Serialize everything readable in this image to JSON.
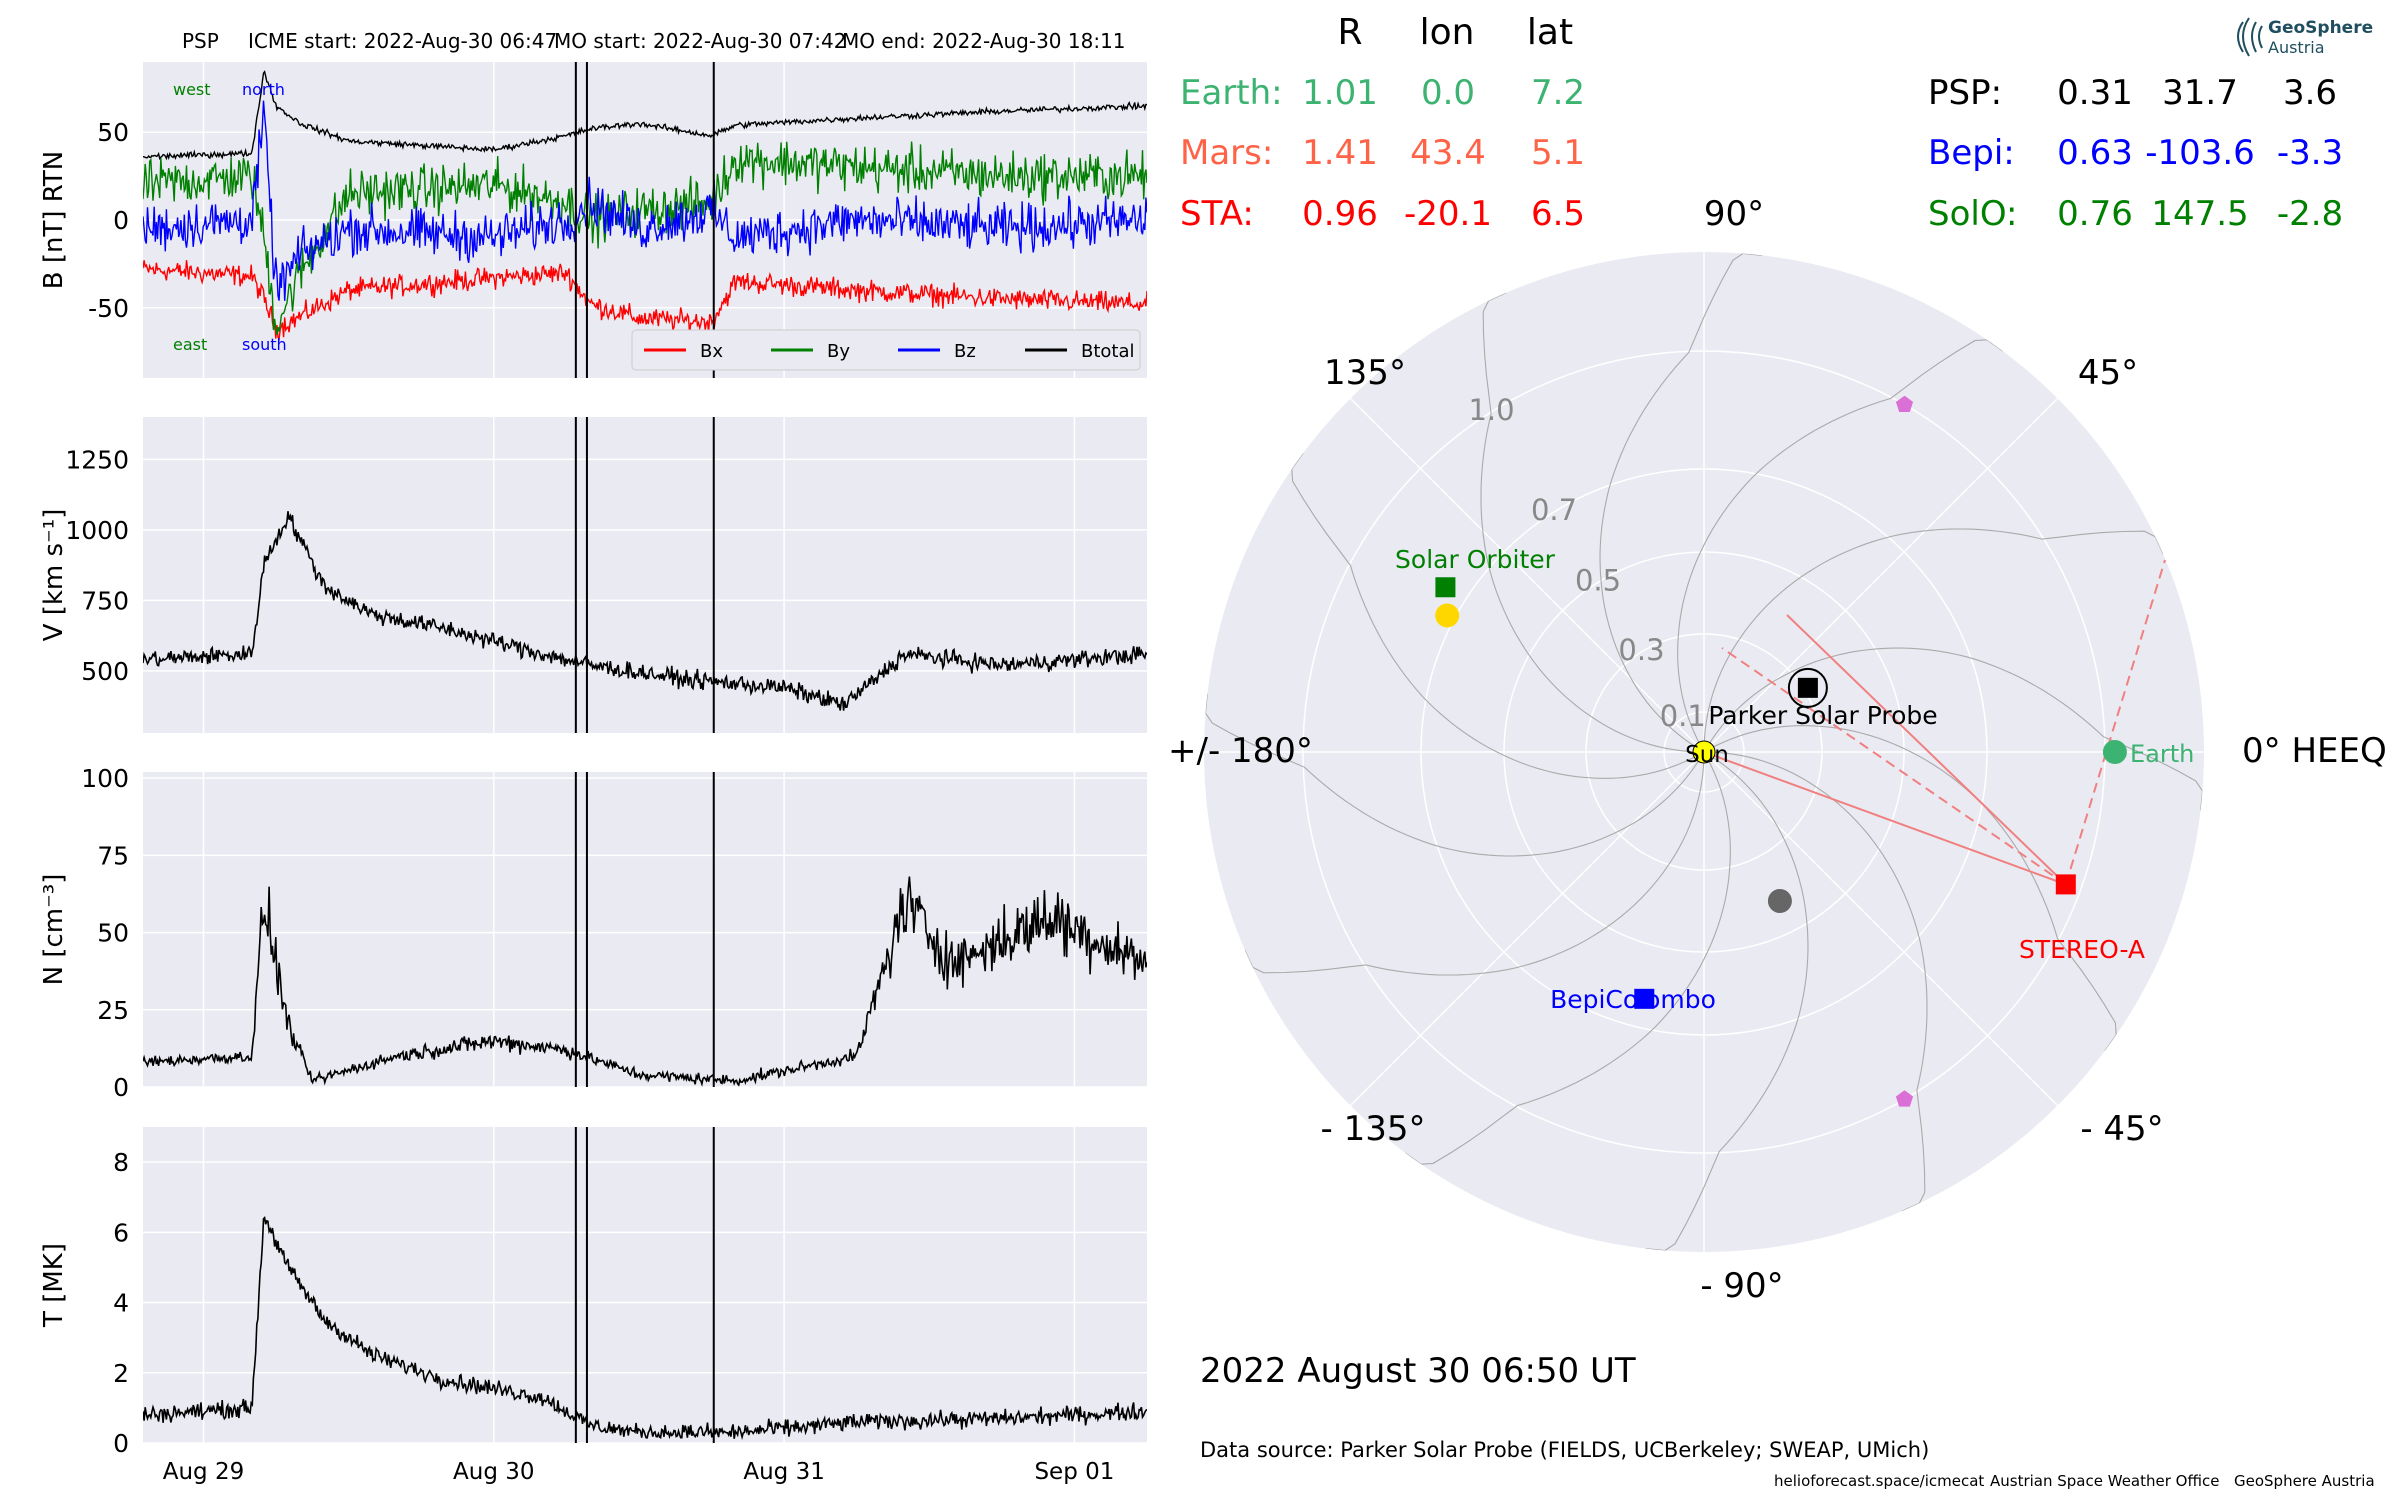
{
  "figure": {
    "header": {
      "spacecraft": "PSP",
      "icme_start": "ICME start: 2022-Aug-30 06:47",
      "mo_start": "MO start: 2022-Aug-30 07:42",
      "mo_end": "MO end: 2022-Aug-30 18:11"
    },
    "date_label": "2022 August 30  06:50 UT",
    "data_source": "Data source: Parker Solar Probe (FIELDS, UCBerkeley; SWEAP, UMich)",
    "footer_credits": [
      "helioforecast.space/icmecat",
      "Austrian Space Weather Office",
      "GeoSphere Austria"
    ],
    "logo": {
      "line1": "GeoSphere",
      "line2": "Austria"
    }
  },
  "colors": {
    "panel_bg": "#eaeaf2",
    "grid": "#ffffff",
    "bx": "#ff0000",
    "by": "#008000",
    "bz": "#0000ff",
    "btotal": "#000000",
    "earth": "#3cb371",
    "mars": "#ff6347",
    "sta": "#ff0000",
    "psp": "#000000",
    "bepi": "#0000ff",
    "solo": "#008000",
    "sun": "#ffff00",
    "planet_grey": "#666666",
    "lagrange": "#da70d6"
  },
  "chart_data": [
    {
      "type": "line",
      "panel": "magnetic_field",
      "ylabel": "B [nT] RTN",
      "ylim": [
        -90,
        90
      ],
      "yticks": [
        -50,
        0,
        50
      ],
      "xlim": [
        "2022-08-28 19:00",
        "2022-09-01 06:00"
      ],
      "xticks": [
        "Aug 29",
        "Aug 30",
        "Aug 31",
        "Sep 01"
      ],
      "grid": true,
      "legend_position": "bottom-right",
      "annotations": {
        "top_left": "west",
        "top_right": "north",
        "bottom_left": "east",
        "bottom_right": "south"
      },
      "vertical_lines": [
        "2022-08-30 06:47",
        "2022-08-30 07:42",
        "2022-08-30 18:11"
      ],
      "series": [
        {
          "name": "Bx",
          "x": [
            "2022-08-28 19:00",
            "2022-08-29 04:00",
            "2022-08-29 05:00",
            "2022-08-29 06:00",
            "2022-08-29 08:00",
            "2022-08-29 12:00",
            "2022-08-30 00:00",
            "2022-08-30 06:00",
            "2022-08-30 08:00",
            "2022-08-30 12:00",
            "2022-08-30 18:00",
            "2022-08-30 20:00",
            "2022-08-31 06:00",
            "2022-08-31 18:00",
            "2022-09-01 06:00"
          ],
          "values": [
            -28,
            -32,
            -45,
            -62,
            -55,
            -40,
            -33,
            -30,
            -48,
            -56,
            -58,
            -35,
            -40,
            -45,
            -48
          ]
        },
        {
          "name": "By",
          "x": [
            "2022-08-28 19:00",
            "2022-08-29 04:00",
            "2022-08-29 05:00",
            "2022-08-29 06:00",
            "2022-08-29 08:00",
            "2022-08-29 12:00",
            "2022-08-30 00:00",
            "2022-08-30 06:00",
            "2022-08-30 08:00",
            "2022-08-30 12:00",
            "2022-08-30 18:00",
            "2022-08-30 20:00",
            "2022-08-31 06:00",
            "2022-08-31 18:00",
            "2022-09-01 06:00"
          ],
          "values": [
            20,
            25,
            -10,
            -60,
            -30,
            15,
            20,
            10,
            0,
            5,
            10,
            35,
            30,
            25,
            25
          ]
        },
        {
          "name": "Bz",
          "x": [
            "2022-08-28 19:00",
            "2022-08-29 04:00",
            "2022-08-29 05:00",
            "2022-08-29 06:00",
            "2022-08-29 08:00",
            "2022-08-29 12:00",
            "2022-08-30 00:00",
            "2022-08-30 06:00",
            "2022-08-30 08:00",
            "2022-08-30 12:00",
            "2022-08-30 18:00",
            "2022-08-30 20:00",
            "2022-08-31 06:00",
            "2022-08-31 18:00",
            "2022-09-01 06:00"
          ],
          "values": [
            -5,
            0,
            60,
            -40,
            -20,
            -5,
            -10,
            0,
            10,
            -5,
            5,
            -10,
            0,
            -5,
            0
          ]
        },
        {
          "name": "Btotal",
          "x": [
            "2022-08-28 19:00",
            "2022-08-29 04:00",
            "2022-08-29 05:00",
            "2022-08-29 06:00",
            "2022-08-29 08:00",
            "2022-08-29 12:00",
            "2022-08-30 00:00",
            "2022-08-30 06:00",
            "2022-08-30 08:00",
            "2022-08-30 12:00",
            "2022-08-30 18:00",
            "2022-08-30 20:00",
            "2022-08-31 06:00",
            "2022-08-31 18:00",
            "2022-09-01 06:00"
          ],
          "values": [
            36,
            38,
            85,
            65,
            55,
            45,
            40,
            48,
            52,
            55,
            48,
            54,
            58,
            62,
            65
          ]
        }
      ]
    },
    {
      "type": "line",
      "panel": "speed",
      "ylabel": "V [km s⁻¹]",
      "ylim": [
        280,
        1400
      ],
      "yticks": [
        500,
        750,
        1000,
        1250
      ],
      "xlim": [
        "2022-08-28 19:00",
        "2022-09-01 06:00"
      ],
      "grid": true,
      "vertical_lines": [
        "2022-08-30 06:47",
        "2022-08-30 07:42",
        "2022-08-30 18:11"
      ],
      "series": [
        {
          "name": "V",
          "x": [
            "2022-08-28 19:00",
            "2022-08-29 04:00",
            "2022-08-29 05:00",
            "2022-08-29 07:00",
            "2022-08-29 10:00",
            "2022-08-29 14:00",
            "2022-08-29 20:00",
            "2022-08-30 04:00",
            "2022-08-30 08:00",
            "2022-08-30 16:00",
            "2022-08-31 00:00",
            "2022-08-31 05:00",
            "2022-08-31 10:00",
            "2022-08-31 18:00",
            "2022-09-01 06:00"
          ],
          "values": [
            540,
            560,
            880,
            1050,
            800,
            700,
            650,
            560,
            520,
            470,
            440,
            380,
            560,
            520,
            560
          ]
        }
      ]
    },
    {
      "type": "line",
      "panel": "density",
      "ylabel": "N [cm⁻³]",
      "ylim": [
        0,
        102
      ],
      "yticks": [
        0,
        25,
        50,
        75,
        100
      ],
      "xlim": [
        "2022-08-28 19:00",
        "2022-09-01 06:00"
      ],
      "grid": true,
      "vertical_lines": [
        "2022-08-30 06:47",
        "2022-08-30 07:42",
        "2022-08-30 18:11"
      ],
      "series": [
        {
          "name": "N",
          "x": [
            "2022-08-28 19:00",
            "2022-08-29 04:00",
            "2022-08-29 05:00",
            "2022-08-29 07:00",
            "2022-08-29 09:00",
            "2022-08-29 16:00",
            "2022-08-30 00:00",
            "2022-08-30 06:00",
            "2022-08-30 12:00",
            "2022-08-30 20:00",
            "2022-08-31 06:00",
            "2022-08-31 10:00",
            "2022-08-31 14:00",
            "2022-08-31 22:00",
            "2022-09-01 06:00"
          ],
          "values": [
            8,
            10,
            60,
            20,
            2,
            10,
            15,
            12,
            4,
            2,
            10,
            60,
            40,
            55,
            40
          ]
        }
      ]
    },
    {
      "type": "line",
      "panel": "temperature",
      "ylabel": "T [MK]",
      "ylim": [
        0,
        9
      ],
      "yticks": [
        0,
        2,
        4,
        6,
        8
      ],
      "xlim": [
        "2022-08-28 19:00",
        "2022-09-01 06:00"
      ],
      "grid": true,
      "vertical_lines": [
        "2022-08-30 06:47",
        "2022-08-30 07:42",
        "2022-08-30 18:11"
      ],
      "series": [
        {
          "name": "T",
          "x": [
            "2022-08-28 19:00",
            "2022-08-29 04:00",
            "2022-08-29 05:00",
            "2022-08-29 07:00",
            "2022-08-29 10:00",
            "2022-08-29 14:00",
            "2022-08-29 20:00",
            "2022-08-30 04:00",
            "2022-08-30 08:00",
            "2022-08-30 12:00",
            "2022-08-30 20:00",
            "2022-08-31 06:00",
            "2022-08-31 18:00",
            "2022-09-01 06:00"
          ],
          "values": [
            0.8,
            1.0,
            6.5,
            5.0,
            3.5,
            2.5,
            1.8,
            1.3,
            0.5,
            0.3,
            0.3,
            0.6,
            0.7,
            0.9
          ]
        }
      ]
    },
    {
      "type": "scatter",
      "panel": "polar_positions",
      "coordinate_system": "HEEQ",
      "r_ticks": [
        0.1,
        0.3,
        0.5,
        0.7,
        1.0
      ],
      "r_tick_labels": [
        "0.1",
        "0.3",
        "0.5",
        "0.7",
        "1.0"
      ],
      "angle_labels": [
        {
          "deg": 0,
          "text": "0° HEEQ"
        },
        {
          "deg": 45,
          "text": "45°"
        },
        {
          "deg": 90,
          "text": "90°"
        },
        {
          "deg": 135,
          "text": "135°"
        },
        {
          "deg": 180,
          "text": "+/- 180°"
        },
        {
          "deg": -135,
          "text": "- 135°"
        },
        {
          "deg": -90,
          "text": "- 90°"
        },
        {
          "deg": -45,
          "text": "- 45°"
        }
      ],
      "table_headers": [
        "R",
        "lon",
        "lat"
      ],
      "table": [
        {
          "name": "Earth:",
          "R": "1.01",
          "lon": "0.0",
          "lat": "7.2",
          "color": "#3cb371"
        },
        {
          "name": "Mars:",
          "R": "1.41",
          "lon": "43.4",
          "lat": "5.1",
          "color": "#ff6347"
        },
        {
          "name": "STA:",
          "R": "0.96",
          "lon": "-20.1",
          "lat": "6.5",
          "color": "#ff0000"
        },
        {
          "name": "PSP:",
          "R": "0.31",
          "lon": "31.7",
          "lat": "3.6",
          "color": "#000000"
        },
        {
          "name": "Bepi:",
          "R": "0.63",
          "lon": "-103.6",
          "lat": "-3.3",
          "color": "#0000ff"
        },
        {
          "name": "SolO:",
          "R": "0.76",
          "lon": "147.5",
          "lat": "-2.8",
          "color": "#008000"
        }
      ],
      "objects": [
        {
          "id": "sun",
          "label": "Sun",
          "r": 0.0,
          "lon": 0,
          "marker": "circle",
          "color": "#ffff00"
        },
        {
          "id": "earth",
          "label": "Earth",
          "r": 1.01,
          "lon": 0.0,
          "marker": "circle",
          "color": "#3cb371"
        },
        {
          "id": "sta",
          "label": "STEREO-A",
          "r": 0.96,
          "lon": -20.1,
          "marker": "square",
          "color": "#ff0000"
        },
        {
          "id": "psp",
          "label": "Parker Solar Probe",
          "r": 0.31,
          "lon": 31.7,
          "marker": "square",
          "color": "#000000"
        },
        {
          "id": "bepi",
          "label": "BepiColombo",
          "r": 0.63,
          "lon": -103.6,
          "marker": "square",
          "color": "#0000ff"
        },
        {
          "id": "solo",
          "label": "Solar Orbiter",
          "r": 0.76,
          "lon": 147.5,
          "marker": "square",
          "color": "#008000"
        },
        {
          "id": "venus",
          "label": "",
          "r": 0.72,
          "lon": 152,
          "marker": "circle",
          "color": "#ffd700"
        },
        {
          "id": "mercury",
          "label": "",
          "r": 0.42,
          "lon": -63,
          "marker": "circle",
          "color": "#666666"
        },
        {
          "id": "l4",
          "label": "",
          "r": 1.0,
          "lon": 60,
          "marker": "pentagon",
          "color": "#da70d6"
        },
        {
          "id": "l5",
          "label": "",
          "r": 1.0,
          "lon": -60,
          "marker": "pentagon",
          "color": "#da70d6"
        }
      ]
    }
  ]
}
